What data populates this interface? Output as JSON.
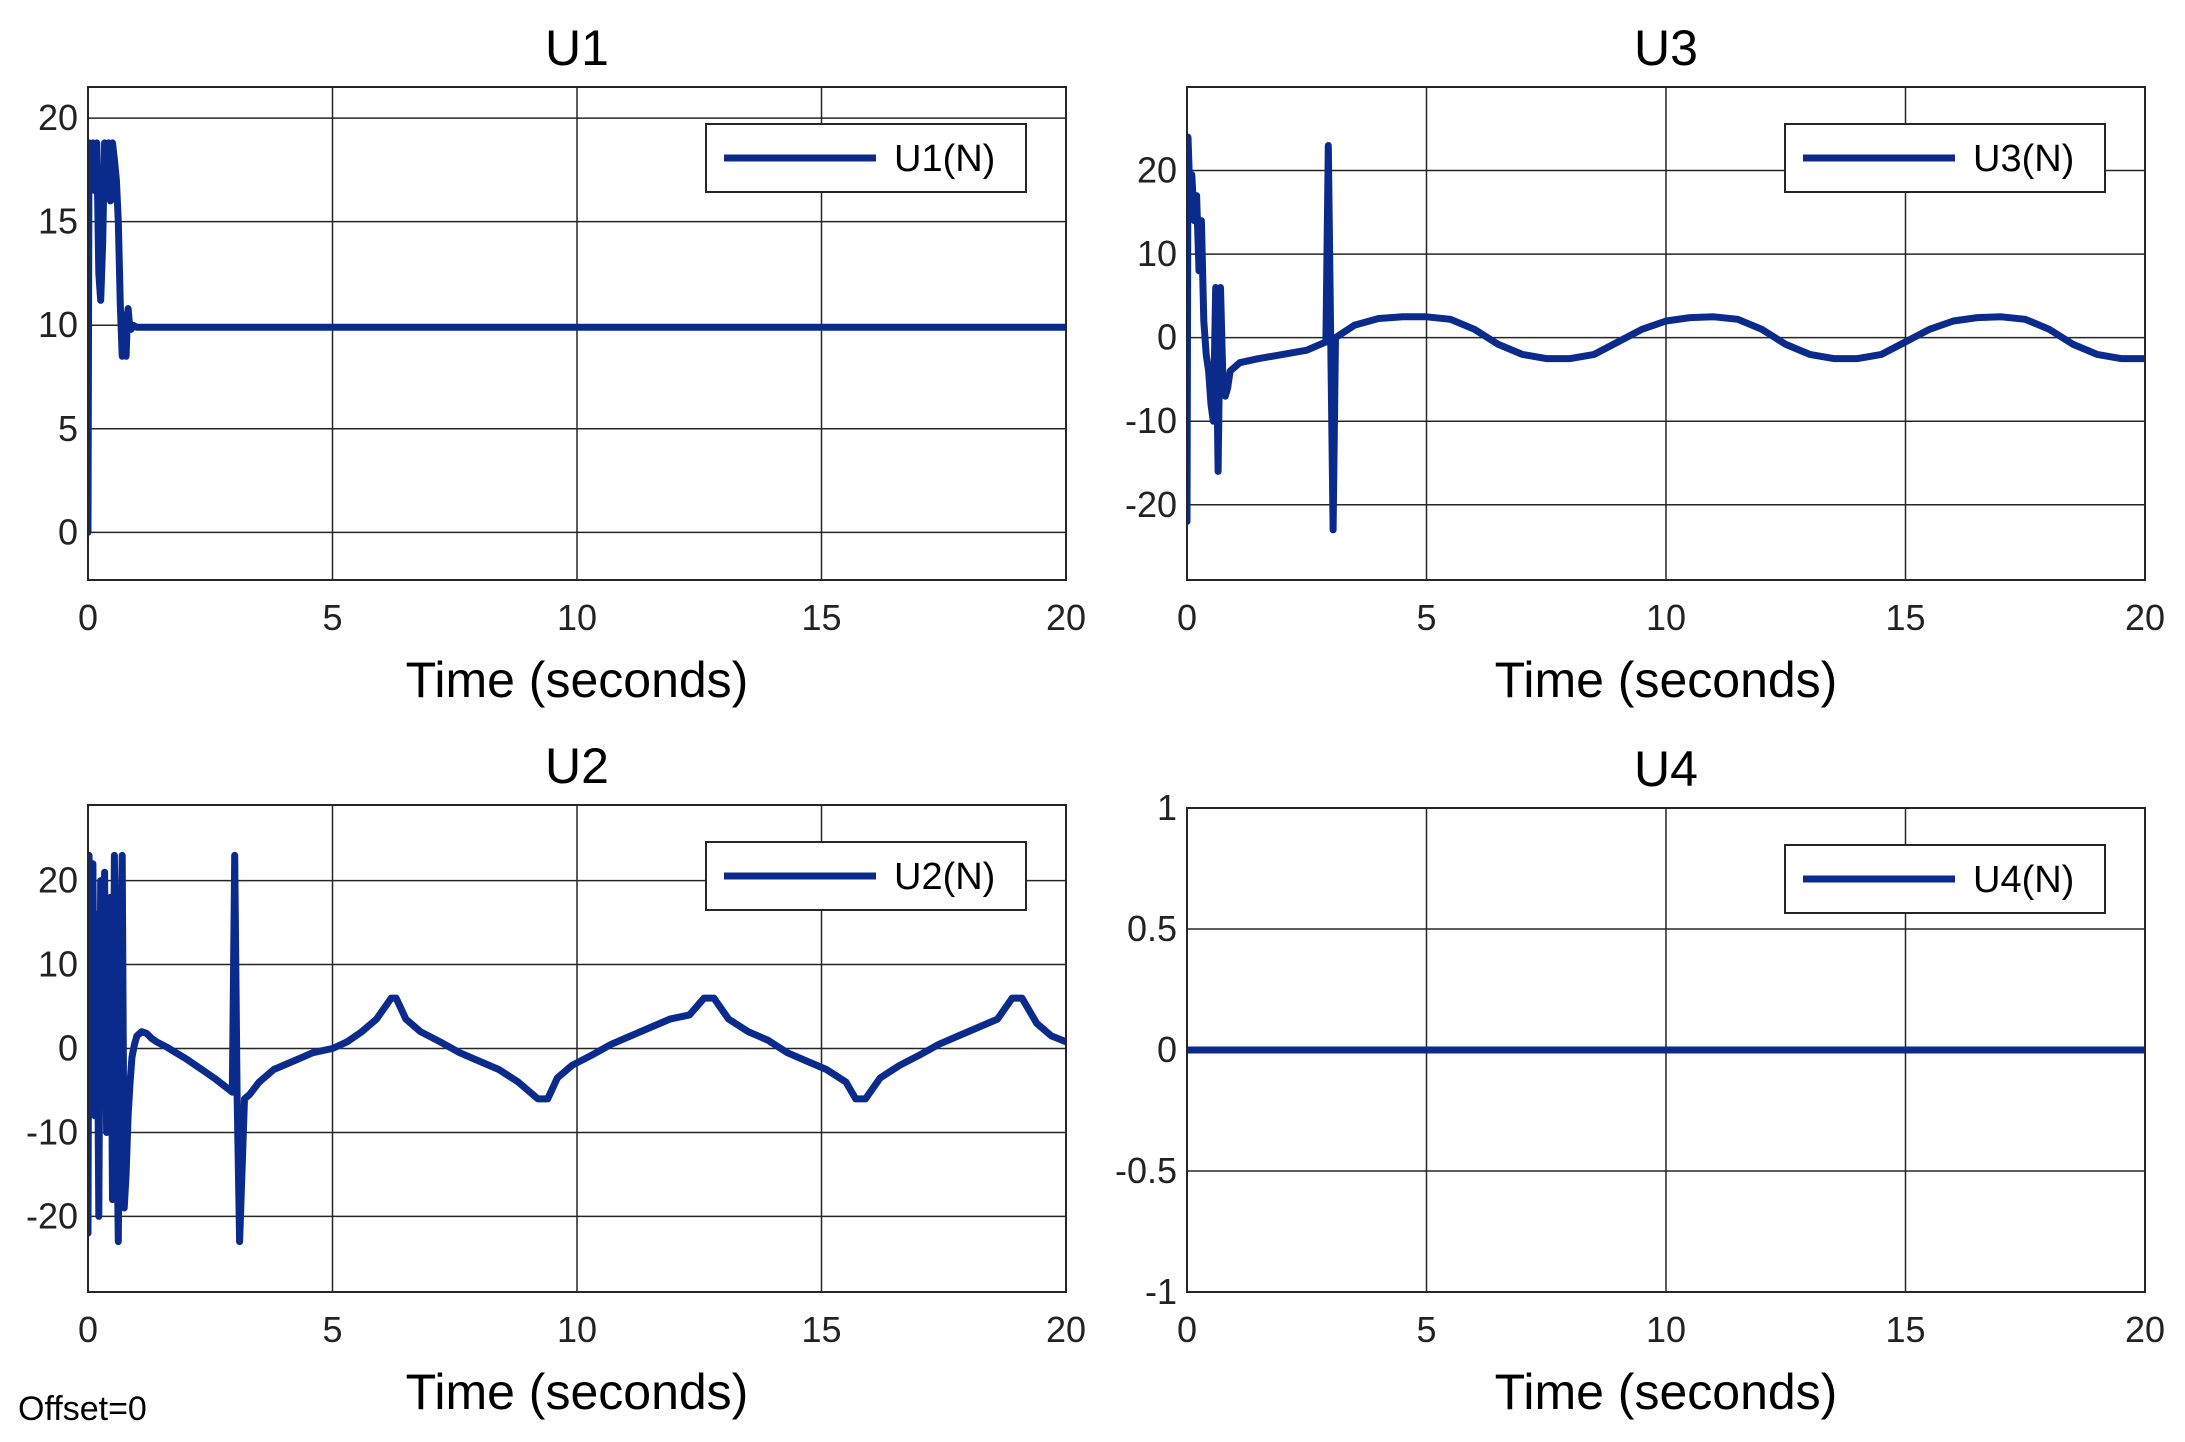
{
  "figure": {
    "footer_label": "Offset=0",
    "line_color": "#0b2b8c"
  },
  "chart_data": [
    {
      "id": "u1",
      "type": "line",
      "title": "U1",
      "xlabel": "Time (seconds)",
      "ylabel": "",
      "xlim": [
        0,
        20
      ],
      "ylim": [
        -2.3,
        21.5
      ],
      "xticks": [
        0,
        5,
        10,
        15,
        20
      ],
      "xtick_labels": [
        "0",
        "5",
        "10",
        "15",
        "20"
      ],
      "yticks": [
        0,
        5,
        10,
        15,
        20
      ],
      "ytick_labels": [
        "0",
        "5",
        "10",
        "15",
        "20"
      ],
      "grid": true,
      "legend": {
        "entries": [
          "U1(N)"
        ],
        "location": "top-right"
      },
      "series": [
        {
          "name": "U1(N)",
          "x": [
            0,
            0.02,
            0.06,
            0.1,
            0.14,
            0.18,
            0.22,
            0.26,
            0.3,
            0.34,
            0.38,
            0.42,
            0.46,
            0.5,
            0.54,
            0.58,
            0.62,
            0.66,
            0.7,
            0.72,
            0.74,
            0.76,
            0.78,
            0.8,
            0.82,
            0.85,
            0.88,
            0.92,
            1.0,
            2,
            5,
            10,
            15,
            20
          ],
          "y": [
            0,
            18.8,
            17.5,
            18.8,
            16.5,
            18.8,
            12.5,
            11.2,
            14,
            18.8,
            17.5,
            18.8,
            16,
            18.8,
            18,
            17,
            15,
            11,
            8.5,
            9.5,
            10.5,
            9,
            8.5,
            10,
            10.8,
            10,
            9.8,
            10,
            9.9,
            9.9,
            9.9,
            9.9,
            9.9,
            9.9
          ]
        }
      ]
    },
    {
      "id": "u3",
      "type": "line",
      "title": "U3",
      "xlabel": "Time (seconds)",
      "ylabel": "",
      "xlim": [
        0,
        20
      ],
      "ylim": [
        -29,
        30
      ],
      "xticks": [
        0,
        5,
        10,
        15,
        20
      ],
      "xtick_labels": [
        "0",
        "5",
        "10",
        "15",
        "20"
      ],
      "yticks": [
        -20,
        -10,
        0,
        10,
        20
      ],
      "ytick_labels": [
        "-20",
        "-10",
        "0",
        "10",
        "20"
      ],
      "grid": true,
      "legend": {
        "entries": [
          "U3(N)"
        ],
        "location": "top-right"
      },
      "series": [
        {
          "name": "U3(N)",
          "x": [
            0,
            0.02,
            0.05,
            0.1,
            0.15,
            0.2,
            0.25,
            0.3,
            0.35,
            0.4,
            0.45,
            0.5,
            0.55,
            0.6,
            0.65,
            0.7,
            0.75,
            0.8,
            0.85,
            0.9,
            1.1,
            1.5,
            2.0,
            2.5,
            2.9,
            2.95,
            3.0,
            3.05,
            3.1,
            3.5,
            4.0,
            4.5,
            5.0,
            5.5,
            6.0,
            6.5,
            7.0,
            7.5,
            8.0,
            8.5,
            9.0,
            9.5,
            10.0,
            10.5,
            11.0,
            11.5,
            12.0,
            12.5,
            13.0,
            13.5,
            14.0,
            14.5,
            15.0,
            15.5,
            16.0,
            16.5,
            17.0,
            17.5,
            18.0,
            18.5,
            19.0,
            19.5,
            20.0
          ],
          "y": [
            -22,
            24,
            19,
            19.5,
            14,
            17,
            8,
            14,
            2,
            -2,
            -4,
            -8,
            -10,
            6,
            -16,
            6,
            -5,
            -7,
            -6,
            -4,
            -3,
            -2.5,
            -2,
            -1.5,
            -0.5,
            23,
            0,
            -23,
            0,
            1.5,
            2.3,
            2.5,
            2.5,
            2.2,
            1.0,
            -0.8,
            -2.0,
            -2.5,
            -2.5,
            -2.0,
            -0.5,
            1.0,
            2.0,
            2.4,
            2.5,
            2.2,
            1.0,
            -0.8,
            -2.0,
            -2.5,
            -2.5,
            -2.0,
            -0.5,
            1.0,
            2.0,
            2.4,
            2.5,
            2.2,
            1.0,
            -0.8,
            -2.0,
            -2.5,
            -2.5
          ]
        }
      ]
    },
    {
      "id": "u2",
      "type": "line",
      "title": "U2",
      "xlabel": "Time (seconds)",
      "ylabel": "",
      "xlim": [
        0,
        20
      ],
      "ylim": [
        -29,
        29
      ],
      "xticks": [
        0,
        5,
        10,
        15,
        20
      ],
      "xtick_labels": [
        "0",
        "5",
        "10",
        "15",
        "20"
      ],
      "yticks": [
        -20,
        -10,
        0,
        10,
        20
      ],
      "ytick_labels": [
        "-20",
        "-10",
        "0",
        "10",
        "20"
      ],
      "grid": true,
      "legend": {
        "entries": [
          "U2(N)"
        ],
        "location": "top-right"
      },
      "series": [
        {
          "name": "U2(N)",
          "x": [
            0,
            0.02,
            0.06,
            0.1,
            0.14,
            0.18,
            0.22,
            0.26,
            0.3,
            0.34,
            0.38,
            0.42,
            0.46,
            0.5,
            0.54,
            0.58,
            0.62,
            0.66,
            0.7,
            0.74,
            0.78,
            0.82,
            0.86,
            0.9,
            0.95,
            1.0,
            1.1,
            1.2,
            1.3,
            1.4,
            1.6,
            1.8,
            2.0,
            2.2,
            2.4,
            2.6,
            2.8,
            2.95,
            3.0,
            3.05,
            3.1,
            3.2,
            3.3,
            3.5,
            3.8,
            4.2,
            4.6,
            5.0,
            5.3,
            5.6,
            5.9,
            6.2,
            6.3,
            6.5,
            6.8,
            7.2,
            7.6,
            8.0,
            8.4,
            8.8,
            9.2,
            9.4,
            9.6,
            9.9,
            10.3,
            10.7,
            11.1,
            11.5,
            11.9,
            12.3,
            12.6,
            12.8,
            13.1,
            13.5,
            13.9,
            14.3,
            14.7,
            15.1,
            15.5,
            15.7,
            15.9,
            16.2,
            16.6,
            17.0,
            17.4,
            17.8,
            18.2,
            18.6,
            18.9,
            19.1,
            19.4,
            19.7,
            20.0
          ],
          "y": [
            -22,
            23,
            14,
            22,
            -8,
            16,
            -20,
            20,
            5,
            21,
            -10,
            3,
            18,
            -18,
            23,
            -5,
            -23,
            10,
            23,
            -19,
            -15,
            -8,
            -4,
            -1,
            0.5,
            1.5,
            2.0,
            1.8,
            1.2,
            0.8,
            0.2,
            -0.5,
            -1.2,
            -2.0,
            -2.8,
            -3.6,
            -4.5,
            -5.2,
            23,
            -5.5,
            -23,
            -6.0,
            -5.5,
            -4.0,
            -2.5,
            -1.5,
            -0.5,
            0,
            0.8,
            2.0,
            3.5,
            6.0,
            6.0,
            3.5,
            2.0,
            0.8,
            -0.5,
            -1.5,
            -2.5,
            -4.0,
            -6.0,
            -6.0,
            -3.5,
            -2.0,
            -0.8,
            0.5,
            1.5,
            2.5,
            3.5,
            4.0,
            6.0,
            6.0,
            3.5,
            2.0,
            1.0,
            -0.5,
            -1.5,
            -2.5,
            -4.0,
            -6.0,
            -6.0,
            -3.5,
            -2.0,
            -0.8,
            0.5,
            1.5,
            2.5,
            3.5,
            6.0,
            6.0,
            3.0,
            1.5,
            0.8
          ]
        }
      ]
    },
    {
      "id": "u4",
      "type": "line",
      "title": "U4",
      "xlabel": "Time (seconds)",
      "ylabel": "",
      "xlim": [
        0,
        20
      ],
      "ylim": [
        -1,
        1
      ],
      "xticks": [
        0,
        5,
        10,
        15,
        20
      ],
      "xtick_labels": [
        "0",
        "5",
        "10",
        "15",
        "20"
      ],
      "yticks": [
        -1,
        -0.5,
        0,
        0.5,
        1
      ],
      "ytick_labels": [
        "-1",
        "-0.5",
        "0",
        "0.5",
        "1"
      ],
      "grid": true,
      "legend": {
        "entries": [
          "U4(N)"
        ],
        "location": "top-right"
      },
      "series": [
        {
          "name": "U4(N)",
          "x": [
            0,
            20
          ],
          "y": [
            0,
            0
          ]
        }
      ]
    }
  ]
}
